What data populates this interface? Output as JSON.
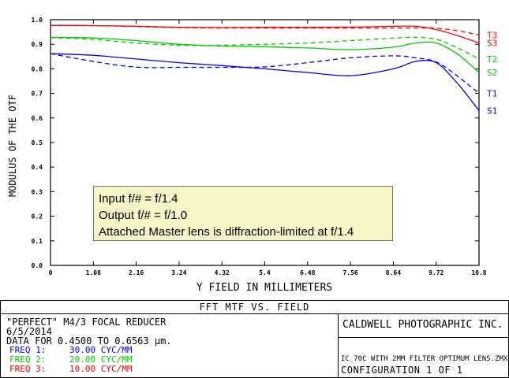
{
  "chart_data": {
    "type": "line",
    "title": "FFT MTF VS. FIELD",
    "xlabel": "Y FIELD IN MILLIMETERS",
    "ylabel": "MODULUS OF THE OTF",
    "xlim": [
      0,
      10.8
    ],
    "ylim": [
      0,
      1.0
    ],
    "x_ticks": [
      "0",
      "1.08",
      "2.16",
      "3.24",
      "4.32",
      "5.4",
      "6.48",
      "7.56",
      "8.64",
      "9.72",
      "10.8"
    ],
    "y_ticks": [
      "0.0",
      "0.1",
      "0.2",
      "0.3",
      "0.4",
      "0.5",
      "0.6",
      "0.7",
      "0.8",
      "0.9",
      "1.0"
    ],
    "grid": false,
    "series": [
      {
        "name": "T3",
        "color": "#ff0000",
        "dash": true,
        "x": [
          0,
          1.08,
          2.16,
          3.24,
          4.32,
          5.4,
          6.48,
          7.56,
          8.64,
          9.2,
          9.72,
          10.26,
          10.8
        ],
        "y": [
          0.977,
          0.976,
          0.972,
          0.968,
          0.966,
          0.966,
          0.966,
          0.966,
          0.966,
          0.966,
          0.965,
          0.955,
          0.938
        ]
      },
      {
        "name": "S3",
        "color": "#ff0000",
        "dash": false,
        "x": [
          0,
          1.08,
          2.16,
          3.24,
          4.32,
          5.4,
          6.48,
          7.56,
          8.64,
          9.2,
          9.72,
          10.26,
          10.8
        ],
        "y": [
          0.977,
          0.976,
          0.973,
          0.969,
          0.968,
          0.969,
          0.969,
          0.97,
          0.973,
          0.973,
          0.96,
          0.935,
          0.905
        ]
      },
      {
        "name": "T2",
        "color": "#00cc00",
        "dash": true,
        "x": [
          0,
          1.08,
          2.16,
          3.24,
          4.32,
          5.4,
          6.48,
          7.56,
          8.64,
          9.2,
          9.72,
          10.26,
          10.8
        ],
        "y": [
          0.927,
          0.92,
          0.905,
          0.896,
          0.896,
          0.9,
          0.905,
          0.915,
          0.925,
          0.928,
          0.92,
          0.885,
          0.84
        ]
      },
      {
        "name": "S2",
        "color": "#00cc00",
        "dash": false,
        "x": [
          0,
          1.08,
          2.16,
          3.24,
          4.32,
          5.4,
          6.48,
          7.56,
          8.64,
          9.2,
          9.72,
          10.26,
          10.8
        ],
        "y": [
          0.928,
          0.926,
          0.915,
          0.9,
          0.893,
          0.89,
          0.885,
          0.878,
          0.888,
          0.905,
          0.905,
          0.86,
          0.785
        ]
      },
      {
        "name": "T1",
        "color": "#0000ff",
        "dash": true,
        "x": [
          0,
          1.08,
          2.16,
          3.24,
          4.32,
          5.4,
          6.48,
          7.56,
          8.64,
          9.2,
          9.72,
          10.26,
          10.8
        ],
        "y": [
          0.862,
          0.83,
          0.807,
          0.806,
          0.806,
          0.808,
          0.825,
          0.845,
          0.853,
          0.845,
          0.828,
          0.77,
          0.7
        ]
      },
      {
        "name": "S1",
        "color": "#0000ff",
        "dash": false,
        "x": [
          0,
          1.08,
          2.16,
          3.24,
          4.32,
          5.4,
          6.48,
          7.56,
          8.64,
          9.2,
          9.72,
          10.26,
          10.8
        ],
        "y": [
          0.862,
          0.855,
          0.84,
          0.825,
          0.813,
          0.8,
          0.785,
          0.772,
          0.8,
          0.83,
          0.825,
          0.74,
          0.63
        ]
      }
    ]
  },
  "annotation": {
    "line1": "Input f/# = f/1.4",
    "line2": "Output f/# = f/1.0",
    "line3": "Attached Master lens is diffraction-limited at f/1.4"
  },
  "footer": {
    "chart_title": "FFT MTF VS. FIELD",
    "lens_title": "\"PERFECT\" M4/3 FOCAL REDUCER",
    "date": "6/5/2014",
    "data_range": "DATA FOR 0.4500 TO 0.6563 μm.",
    "freqs": [
      {
        "label": "FREQ 1:",
        "value": "30.00 CYC/MM",
        "color": "#0000ff"
      },
      {
        "label": "FREQ 2:",
        "value": "20.00 CYC/MM",
        "color": "#00cc00"
      },
      {
        "label": "FREQ 3:",
        "value": "10.00 CYC/MM",
        "color": "#ff0000"
      }
    ],
    "company": "CALDWELL PHOTOGRAPHIC INC.",
    "file_name": "IC_70C WITH 2MM FILTER OPTIMUM LENS.ZMX",
    "configuration": "CONFIGURATION 1 OF 1"
  }
}
